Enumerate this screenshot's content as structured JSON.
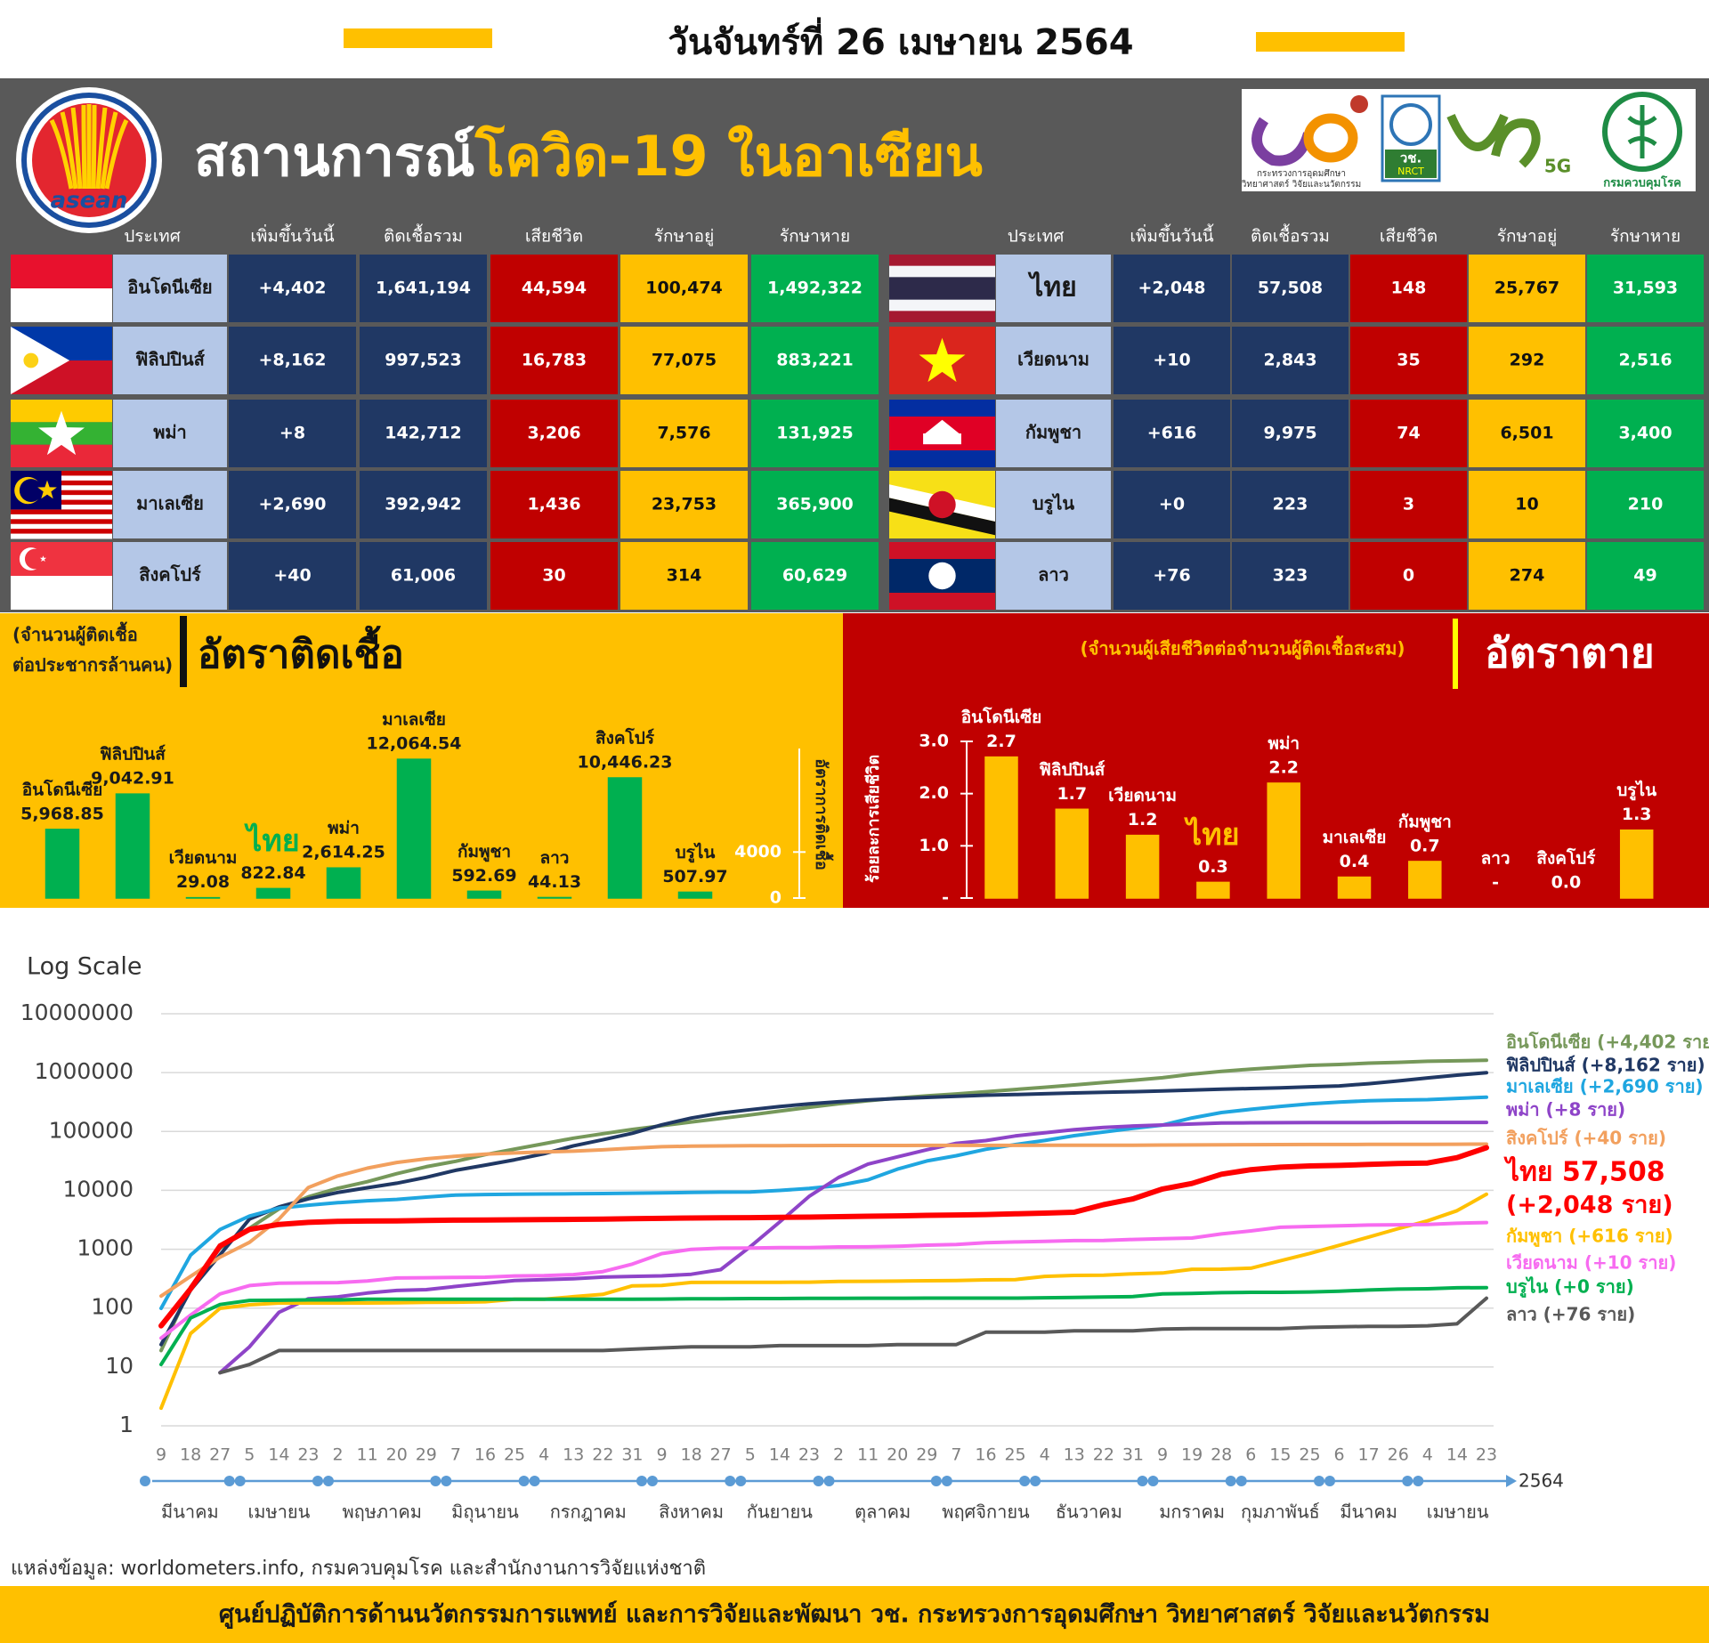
{
  "header": {
    "date": "วันจันทร์ที่ 26 เมษายน 2564"
  },
  "banner": {
    "title_1": "สถานการณ์",
    "title_2": "โควิด-19 ในอาเซียน"
  },
  "logos": {
    "asean": "asean",
    "mhesi_1": "กระทรวงการอุดมศึกษา",
    "mhesi_2": "วิทยาศาสตร์ วิจัยและนวัตกรรม",
    "nrct_th": "วช.",
    "nrct_en": "NRCT",
    "fiveg": "5G",
    "ddc": "กรมควบคุมโรค"
  },
  "table": {
    "left": {
      "headers": [
        "ประเทศ",
        "เพิ่มขึ้นวันนี้",
        "ติดเชื้อรวม",
        "เสียชีวิต",
        "รักษาอยู่",
        "รักษาหาย"
      ],
      "rows": [
        [
          "อินโดนีเซีย",
          "+4,402",
          "1,641,194",
          "44,594",
          "100,474",
          "1,492,322"
        ],
        [
          "ฟิลิปปินส์",
          "+8,162",
          "997,523",
          "16,783",
          "77,075",
          "883,221"
        ],
        [
          "พม่า",
          "+8",
          "142,712",
          "3,206",
          "7,576",
          "131,925"
        ],
        [
          "มาเลเซีย",
          "+2,690",
          "392,942",
          "1,436",
          "23,753",
          "365,900"
        ],
        [
          "สิงคโปร์",
          "+40",
          "61,006",
          "30",
          "314",
          "60,629"
        ]
      ]
    },
    "right": {
      "headers": [
        "ประเทศ",
        "เพิ่มขึ้นวันนี้",
        "ติดเชื้อรวม",
        "เสียชีวิต",
        "รักษาอยู่",
        "รักษาหาย"
      ],
      "rows": [
        [
          "ไทย",
          "+2,048",
          "57,508",
          "148",
          "25,767",
          "31,593"
        ],
        [
          "เวียดนาม",
          "+10",
          "2,843",
          "35",
          "292",
          "2,516"
        ],
        [
          "กัมพูชา",
          "+616",
          "9,975",
          "74",
          "6,501",
          "3,400"
        ],
        [
          "บรูไน",
          "+0",
          "223",
          "3",
          "10",
          "210"
        ],
        [
          "ลาว",
          "+76",
          "323",
          "0",
          "274",
          "49"
        ]
      ]
    }
  },
  "chart_data": [
    {
      "type": "bar",
      "title": "อัตราติดเชื้อ",
      "subtitle": "(จำนวนผู้ติดเชื้อ\nต่อประชากรล้านคน)",
      "y_label": "อัตราการติดเชื้อ",
      "categories": [
        "อินโดนีเซีย",
        "ฟิลิปปินส์",
        "เวียดนาม",
        "ไทย",
        "พม่า",
        "มาเลเซีย",
        "กัมพูชา",
        "ลาว",
        "สิงคโปร์",
        "บรูไน"
      ],
      "values": [
        5968.85,
        9042.91,
        29.08,
        822.84,
        2614.25,
        12064.54,
        592.69,
        44.13,
        10446.23,
        507.97
      ],
      "value_labels": [
        "5,968.85",
        "9,042.91",
        "29.08",
        "822.84",
        "2,614.25",
        "12,064.54",
        "592.69",
        "44.13",
        "10,446.23",
        "507.97"
      ],
      "color": "#00b050",
      "highlight_category": "ไทย",
      "ylim": [
        0,
        13000
      ],
      "yticks": [
        0,
        4000
      ]
    },
    {
      "type": "bar",
      "title": "อัตราตาย",
      "subtitle": "(จำนวนผู้เสียชีวิตต่อจำนวนผู้ติดเชื้อสะสม)",
      "y_label": "ร้อยละการเสียชีวิต",
      "categories": [
        "อินโดนีเซีย",
        "ฟิลิปปินส์",
        "เวียดนาม",
        "ไทย",
        "พม่า",
        "มาเลเซีย",
        "กัมพูชา",
        "ลาว",
        "สิงคโปร์",
        "บรูไน"
      ],
      "values": [
        2.7,
        1.7,
        1.2,
        0.3,
        2.2,
        0.4,
        0.7,
        null,
        0,
        1.3
      ],
      "value_labels": [
        "2.7",
        "1.7",
        "1.2",
        "0.3",
        "2.2",
        "0.4",
        "0.7",
        "-",
        "0.0",
        "1.3"
      ],
      "color": "#ffc000",
      "highlight_category": "ไทย",
      "ylim": [
        0,
        3
      ],
      "yticks": [
        {
          "value": 0,
          "label": "-"
        },
        {
          "value": 1,
          "label": "1.0"
        },
        {
          "value": 2,
          "label": "2.0"
        },
        {
          "value": 3,
          "label": "3.0"
        }
      ]
    },
    {
      "type": "line",
      "y_label": "Log Scale",
      "y_scale": "log",
      "grid": true,
      "legend": "right",
      "categories": [
        "9",
        "18",
        "27",
        "5",
        "14",
        "23",
        "2",
        "11",
        "20",
        "29",
        "7",
        "16",
        "25",
        "4",
        "13",
        "22",
        "31",
        "9",
        "18",
        "27",
        "5",
        "14",
        "23",
        "2",
        "11",
        "20",
        "29",
        "7",
        "16",
        "25",
        "4",
        "13",
        "22",
        "31",
        "9",
        "19",
        "28",
        "6",
        "15",
        "25",
        "6",
        "17",
        "26",
        "4",
        "14",
        "23"
      ],
      "months": [
        "มีนาคม",
        "เมษายน",
        "พฤษภาคม",
        "มิถุนายน",
        "กรกฎาคม",
        "สิงหาคม",
        "กันยายน",
        "ตุลาคม",
        "พฤศจิกายน",
        "ธันวาคม",
        "มกราคม",
        "กุมภาพันธ์",
        "มีนาคม",
        "เมษายน"
      ],
      "x_year": "2564",
      "ylim": [
        1,
        10000000
      ],
      "yticks": [
        1,
        10,
        100,
        1000,
        10000,
        100000,
        1000000,
        10000000
      ],
      "annotations": [
        "(+2,048 ราย)"
      ],
      "series": [
        {
          "name": "อินโดนีเซีย (+4,402  ราย)",
          "color": "#76985a",
          "values": [
            19,
            227,
            1046,
            2273,
            4839,
            7775,
            10843,
            14032,
            19189,
            25216,
            31186,
            40400,
            50187,
            62142,
            76981,
            91751,
            108376,
            125396,
            144945,
            165887,
            190665,
            221523,
            257388,
            295499,
            333449,
            368842,
            404048,
            433836,
            474455,
            516753,
            563680,
            617820,
            678125,
            743198,
            818386,
            939948,
            1051795,
            1147010,
            1233959,
            1329074,
            1373836,
            1450132,
            1492002,
            1558145,
            1583182,
            1626812
          ]
        },
        {
          "name": "ฟิลิปปินส์ (+8,162 ราย)",
          "color": "#203864",
          "values": [
            24,
            202,
            803,
            3246,
            5223,
            7192,
            9223,
            11086,
            13221,
            16634,
            21895,
            26781,
            33069,
            41830,
            57006,
            72269,
            93354,
            129913,
            169213,
            205581,
            234570,
            265888,
            294591,
            319330,
            342816,
            362243,
            378933,
            396395,
            413430,
            424297,
            438069,
            451839,
            463073,
            474064,
            487690,
            505939,
            521413,
            537310,
            552246,
            574247,
            594412,
            648066,
            721892,
            812760,
            904285,
            997523
          ]
        },
        {
          "name": "มาเลเซีย (+2,690 ราย)",
          "color": "#1fa6e0",
          "values": [
            99,
            790,
            2161,
            3662,
            4987,
            5603,
            6176,
            6656,
            7009,
            7677,
            8329,
            8494,
            8600,
            8674,
            8725,
            8840,
            8964,
            9063,
            9235,
            9334,
            9374,
            9969,
            10769,
            12088,
            15096,
            22957,
            31548,
            38718,
            49801,
            59817,
            70236,
            84846,
            97851,
            113010,
            128465,
            169379,
            209661,
            237813,
            266445,
            294375,
            314989,
            333024,
            341944,
            348146,
            364946,
            382169
          ]
        },
        {
          "name": "พม่า (+8 ราย)",
          "color": "#8e44c8",
          "values": [
            null,
            null,
            8,
            22,
            85,
            144,
            155,
            180,
            199,
            206,
            233,
            262,
            293,
            304,
            316,
            336,
            346,
            353,
            375,
            450,
            1100,
            2900,
            7900,
            16500,
            28000,
            37000,
            49000,
            63000,
            70000,
            84000,
            95000,
            107000,
            117000,
            124000,
            129000,
            134000,
            139000,
            140500,
            141000,
            141800,
            142000,
            142300,
            142400,
            142600,
            142700,
            142712
          ]
        },
        {
          "name": "สิงคโปร์ (+40 ราย)",
          "color": "#f2a05e",
          "values": [
            160,
            345,
            732,
            1309,
            3252,
            11178,
            17548,
            23822,
            29812,
            34366,
            37910,
            41216,
            43246,
            44983,
            46283,
            48744,
            52205,
            55104,
            56266,
            56901,
            57166,
            57488,
            57654,
            57765,
            57866,
            57915,
            57980,
            58043,
            58130,
            58165,
            58213,
            58313,
            58422,
            58569,
            58821,
            59157,
            59366,
            59699,
            59879,
            60033,
            60117,
            60253,
            60347,
            60469,
            60769,
            61006
          ]
        },
        {
          "name": "ไทย 57,508",
          "color": "#ff0000",
          "values": [
            50,
            212,
            1136,
            2169,
            2643,
            2854,
            2966,
            3015,
            3037,
            3081,
            3119,
            3141,
            3162,
            3185,
            3220,
            3250,
            3311,
            3345,
            3390,
            3411,
            3437,
            3490,
            3516,
            3575,
            3636,
            3691,
            3759,
            3811,
            3880,
            3998,
            4107,
            4246,
            5716,
            7163,
            10547,
            13104,
            18782,
            22453,
            24714,
            25951,
            26508,
            27602,
            28577,
            29127,
            35910,
            53022
          ]
        },
        {
          "name": "กัมพูชา (+616 ราย)",
          "color": "#ffc000",
          "values": [
            2,
            37,
            99,
            114,
            122,
            122,
            122,
            122,
            123,
            125,
            126,
            128,
            141,
            141,
            156,
            171,
            239,
            243,
            273,
            274,
            274,
            275,
            276,
            283,
            285,
            287,
            291,
            294,
            302,
            305,
            345,
            359,
            362,
            382,
            394,
            456,
            458,
            476,
            636,
            849,
            1163,
            1608,
            2233,
            3028,
            4515,
            8577
          ]
        },
        {
          "name": "เวียดนาม (+10 ราย)",
          "color": "#f76bf0",
          "values": [
            31,
            76,
            174,
            241,
            265,
            268,
            271,
            288,
            324,
            328,
            332,
            335,
            352,
            355,
            370,
            417,
            558,
            841,
            994,
            1040,
            1049,
            1063,
            1068,
            1094,
            1098,
            1122,
            1173,
            1206,
            1288,
            1331,
            1361,
            1402,
            1410,
            1465,
            1513,
            1551,
            1817,
            2050,
            2362,
            2432,
            2494,
            2575,
            2603,
            2631,
            2762,
            2840
          ]
        },
        {
          "name": "บรูไน (+0 ราย)",
          "color": "#00b050",
          "values": [
            11,
            68,
            115,
            135,
            136,
            138,
            138,
            141,
            141,
            141,
            141,
            141,
            141,
            141,
            141,
            141,
            141,
            142,
            144,
            144,
            145,
            145,
            146,
            146,
            147,
            147,
            148,
            148,
            148,
            148,
            150,
            152,
            154,
            157,
            174,
            178,
            183,
            185,
            185,
            188,
            193,
            203,
            210,
            213,
            221,
            223
          ]
        },
        {
          "name": "ลาว (+76 ราย)",
          "color": "#595959",
          "values": [
            null,
            null,
            8,
            11,
            19,
            19,
            19,
            19,
            19,
            19,
            19,
            19,
            19,
            19,
            19,
            19,
            20,
            21,
            22,
            22,
            22,
            23,
            23,
            23,
            23,
            24,
            24,
            24,
            39,
            39,
            39,
            41,
            41,
            41,
            44,
            45,
            45,
            45,
            45,
            47,
            48,
            49,
            49,
            50,
            54,
            147
          ]
        }
      ]
    }
  ],
  "source": "แหล่งข้อมูล: worldometers.info, กรมควบคุมโรค และสำนักงานการวิจัยแห่งชาติ",
  "footer": "ศูนย์ปฏิบัติการด้านนวัตกรรมการแพทย์ และการวิจัยและพัฒนา  วช.  กระทรวงการอุดมศึกษา วิทยาศาสตร์ วิจัยและนวัตกรรม"
}
